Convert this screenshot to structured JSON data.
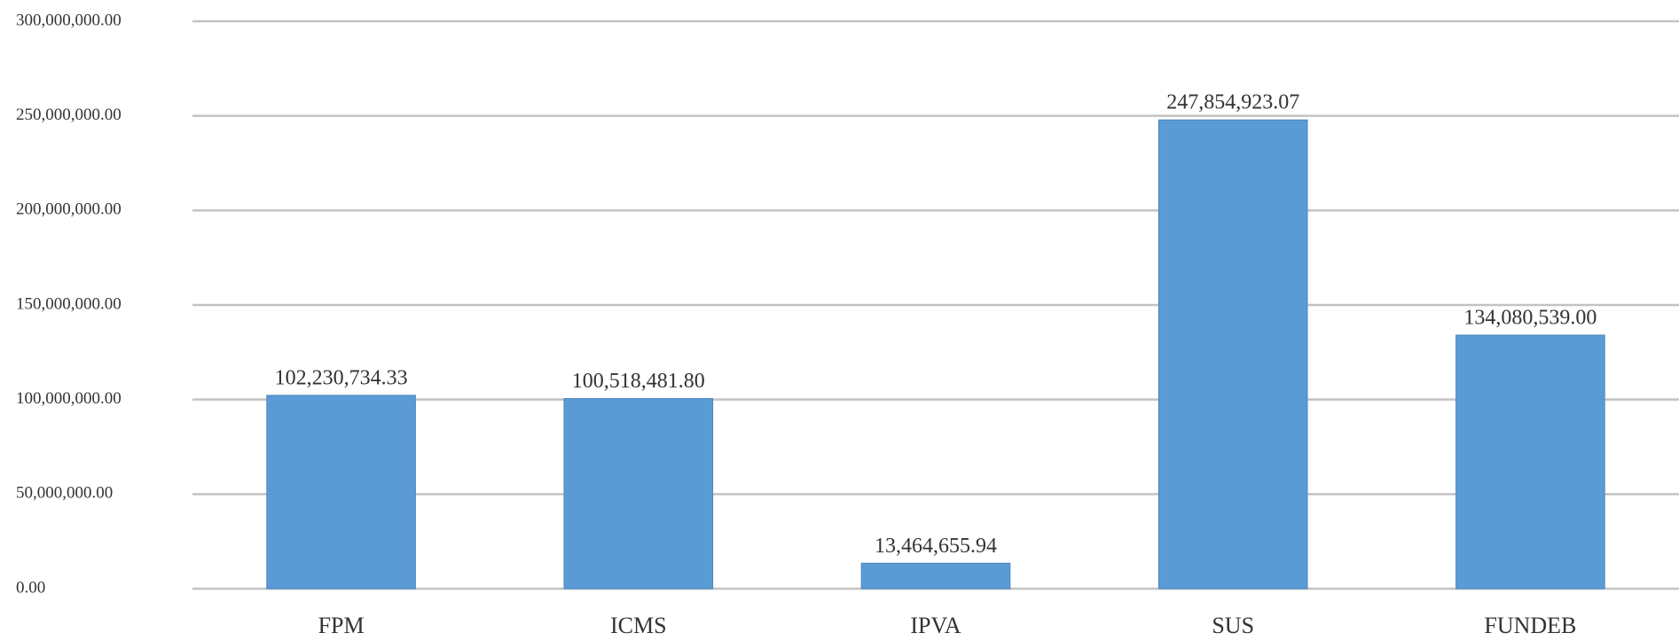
{
  "chart_data": {
    "type": "bar",
    "categories": [
      "FPM",
      "ICMS",
      "IPVA",
      "SUS",
      "FUNDEB"
    ],
    "values": [
      102230734.33,
      100518481.8,
      13464655.94,
      247854923.07,
      134080539.0
    ],
    "value_labels": [
      "102,230,734.33",
      "100,518,481.80",
      "13,464,655.94",
      "247,854,923.07",
      "134,080,539.00"
    ],
    "color": "#5b9bd5",
    "ylim": [
      0,
      300000000
    ],
    "yticks": [
      {
        "value": 0,
        "label": "0.00"
      },
      {
        "value": 50000000,
        "label": "50,000,000.00"
      },
      {
        "value": 100000000,
        "label": "100,000,000.00"
      },
      {
        "value": 150000000,
        "label": "150,000,000.00"
      },
      {
        "value": 200000000,
        "label": "200,000,000.00"
      },
      {
        "value": 250000000,
        "label": "250,000,000.00"
      },
      {
        "value": 300000000,
        "label": "300,000,000.00"
      }
    ],
    "grid": true
  }
}
